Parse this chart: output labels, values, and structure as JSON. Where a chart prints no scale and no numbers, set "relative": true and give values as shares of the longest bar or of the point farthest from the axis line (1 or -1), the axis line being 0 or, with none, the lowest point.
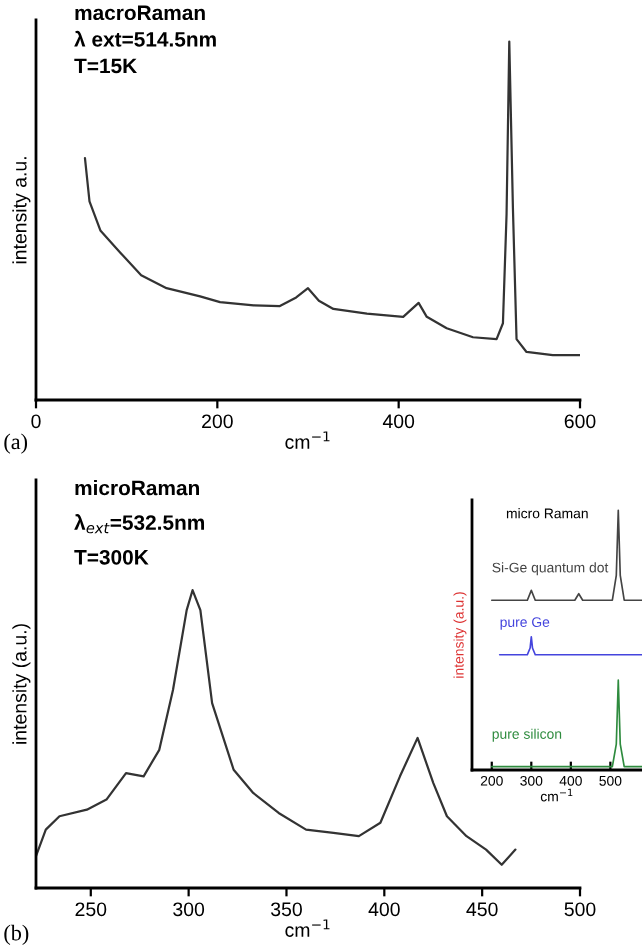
{
  "chart_data": [
    {
      "type": "line",
      "relative": true,
      "tick_labels": "x",
      "xlim": [
        0,
        600
      ],
      "xticks": [
        0,
        200,
        400,
        600
      ],
      "xlabel": "cm$^{−1}$",
      "ylabel": "intensity a.u.",
      "annotations": [
        "(a)",
        "macroRaman",
        "λ ext=514.5nm",
        "T=15K"
      ],
      "series": [
        {
          "color": "#333333",
          "x": [
            54,
            59,
            71,
            93,
            116,
            144,
            181,
            203,
            240,
            269,
            287,
            300,
            312,
            328,
            365,
            405,
            422,
            431,
            453,
            482,
            508,
            515,
            519,
            522,
            526,
            530,
            541,
            570,
            600
          ],
          "values": [
            0.675,
            0.554,
            0.473,
            0.411,
            0.348,
            0.312,
            0.289,
            0.273,
            0.264,
            0.262,
            0.286,
            0.312,
            0.277,
            0.254,
            0.241,
            0.232,
            0.271,
            0.232,
            0.2,
            0.175,
            0.17,
            0.214,
            0.518,
            1.0,
            0.536,
            0.17,
            0.134,
            0.125,
            0.125
          ]
        }
      ]
    },
    {
      "type": "line",
      "relative": true,
      "tick_labels": "x",
      "xlim": [
        222,
        500
      ],
      "xticks": [
        250,
        300,
        350,
        400,
        450,
        500
      ],
      "xlabel": "cm$^{−1}$",
      "ylabel": "intensity (a.u.)",
      "annotations": [
        "(b)",
        "microRaman",
        "λ$_{ext}$=532.5nm",
        "T=300K"
      ],
      "series": [
        {
          "color": "#333333",
          "x": [
            222,
            227,
            234,
            248,
            258,
            268,
            277,
            285,
            292,
            299,
            302,
            306,
            312,
            323,
            333,
            346,
            360,
            374,
            387,
            398,
            408,
            417,
            425,
            432,
            442,
            452,
            460,
            467
          ],
          "values": [
            0.107,
            0.196,
            0.241,
            0.263,
            0.297,
            0.386,
            0.375,
            0.464,
            0.665,
            0.933,
            1.0,
            0.933,
            0.621,
            0.397,
            0.319,
            0.252,
            0.196,
            0.185,
            0.174,
            0.219,
            0.375,
            0.504,
            0.353,
            0.241,
            0.174,
            0.129,
            0.078,
            0.129
          ]
        }
      ]
    },
    {
      "type": "line",
      "relative": true,
      "tick_labels": "x",
      "xlim": [
        150,
        580
      ],
      "xticks": [
        200,
        300,
        400,
        500
      ],
      "xlabel": "cm$^{−1}$",
      "ylabel": "intensity (a.u.)",
      "annotations": [
        "micro Raman"
      ],
      "series": [
        {
          "name": "Si-Ge quantum dot",
          "color": "#444444",
          "x": [
            200,
            290,
            300,
            310,
            410,
            420,
            430,
            505,
            515,
            520,
            525,
            535,
            580
          ],
          "values": [
            0.654,
            0.654,
            0.692,
            0.654,
            0.654,
            0.679,
            0.654,
            0.654,
            0.75,
            1.0,
            0.75,
            0.654,
            0.654
          ]
        },
        {
          "name": "pure Ge",
          "color": "#4444dd",
          "x": [
            220,
            290,
            297,
            300,
            303,
            310,
            580
          ],
          "values": [
            0.444,
            0.444,
            0.47,
            0.513,
            0.47,
            0.444,
            0.444
          ]
        },
        {
          "name": "pure silicon",
          "color": "#2e8b3e",
          "x": [
            200,
            505,
            515,
            520,
            525,
            535,
            580
          ],
          "values": [
            0.013,
            0.013,
            0.1,
            0.346,
            0.1,
            0.013,
            0.013
          ]
        }
      ]
    }
  ]
}
